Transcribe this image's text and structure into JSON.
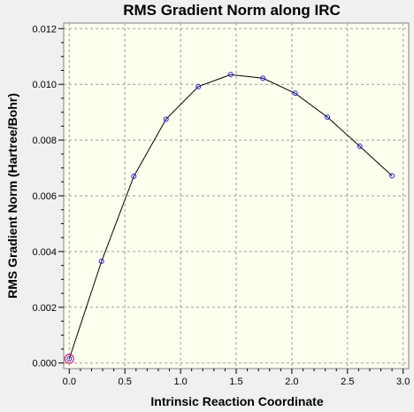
{
  "chart_data": {
    "type": "line",
    "title": "RMS Gradient Norm along IRC",
    "xlabel": "Intrinsic Reaction Coordinate",
    "ylabel": "RMS Gradient Norm (Hartree/Bohr)",
    "xlim": [
      -0.05,
      3.05
    ],
    "ylim": [
      -0.0002,
      0.0122
    ],
    "x_ticks": [
      0.0,
      0.5,
      1.0,
      1.5,
      2.0,
      2.5,
      3.0
    ],
    "x_tick_labels": [
      "0.0",
      "0.5",
      "1.0",
      "1.5",
      "2.0",
      "2.5",
      "3.0"
    ],
    "y_ticks": [
      0.0,
      0.002,
      0.004,
      0.006,
      0.008,
      0.01,
      0.012
    ],
    "y_tick_labels": [
      "0.000",
      "0.002",
      "0.004",
      "0.006",
      "0.008",
      "0.010",
      "0.012"
    ],
    "grid": true,
    "highlighted_point_index": 0,
    "colors": {
      "plot_background": "#ffffef",
      "line": "#000000",
      "marker": "#1f1fe6",
      "highlight": "#d0206a"
    },
    "series": [
      {
        "x": [
          0.0,
          0.29,
          0.58,
          0.87,
          1.16,
          1.45,
          1.74,
          2.03,
          2.32,
          2.61,
          2.9
        ],
        "y": [
          0.00015,
          0.00365,
          0.0067,
          0.00875,
          0.00992,
          0.01035,
          0.01022,
          0.00968,
          0.00882,
          0.00778,
          0.00672
        ]
      }
    ]
  }
}
